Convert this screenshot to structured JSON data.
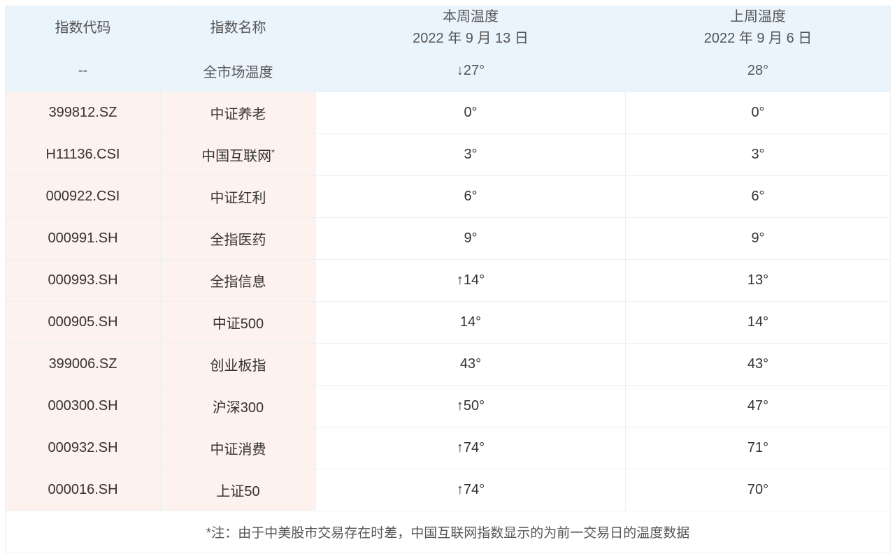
{
  "header": {
    "code": "指数代码",
    "name": "指数名称",
    "this_week": "本周温度",
    "this_week_date": "2022 年 9 月 13 日",
    "last_week": "上周温度",
    "last_week_date": "2022 年 9 月 6 日"
  },
  "market": {
    "code": "--",
    "name": "全市场温度",
    "this_week": "↓27°",
    "last_week": "28°"
  },
  "rows": [
    {
      "code": "399812.SZ",
      "name": "中证养老",
      "mark": "",
      "this_week": "0°",
      "last_week": "0°"
    },
    {
      "code": "H11136.CSI",
      "name": "中国互联网",
      "mark": "*",
      "this_week": "3°",
      "last_week": "3°"
    },
    {
      "code": "000922.CSI",
      "name": "中证红利",
      "mark": "",
      "this_week": "6°",
      "last_week": "6°"
    },
    {
      "code": "000991.SH",
      "name": "全指医药",
      "mark": "",
      "this_week": "9°",
      "last_week": "9°"
    },
    {
      "code": "000993.SH",
      "name": "全指信息",
      "mark": "",
      "this_week": "↑14°",
      "last_week": "13°"
    },
    {
      "code": "000905.SH",
      "name": "中证500",
      "mark": "",
      "this_week": "14°",
      "last_week": "14°"
    },
    {
      "code": "399006.SZ",
      "name": "创业板指",
      "mark": "",
      "this_week": "43°",
      "last_week": "43°"
    },
    {
      "code": "000300.SH",
      "name": "沪深300",
      "mark": "",
      "this_week": "↑50°",
      "last_week": "47°"
    },
    {
      "code": "000932.SH",
      "name": "中证消费",
      "mark": "",
      "this_week": "↑74°",
      "last_week": "71°"
    },
    {
      "code": "000016.SH",
      "name": "上证50",
      "mark": "",
      "this_week": "↑74°",
      "last_week": "70°"
    }
  ],
  "footnote": "*注：由于中美股市交易存在时差，中国互联网指数显示的为前一交易日的温度数据",
  "colors": {
    "header_bg": "#eaf4fd",
    "left_bg": "#fef2ee"
  }
}
